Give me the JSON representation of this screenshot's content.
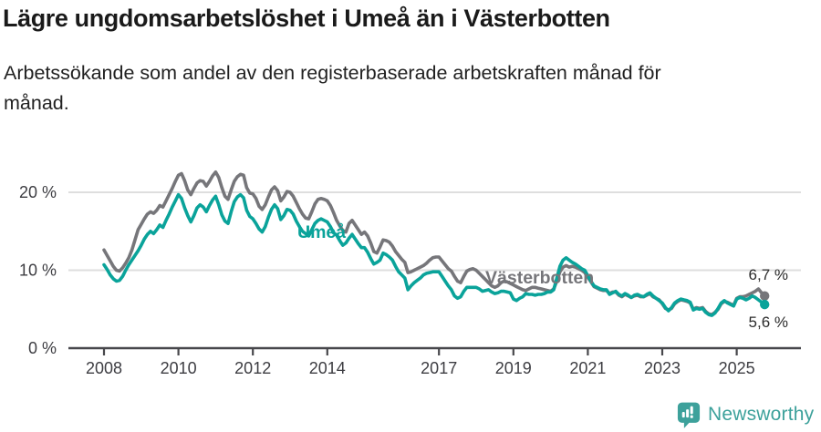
{
  "header": {
    "title": "Lägre ungdomsarbetslöshet i Umeå än i Västerbotten",
    "subtitle_lines": [
      "Arbetssökande som andel av den registerbaserade arbetskraften månad för",
      "månad."
    ]
  },
  "colors": {
    "teal": "#0aa39a",
    "gray": "#76767a",
    "grid": "#dedede",
    "axis": "#47474b",
    "tick_text": "#3d3d42",
    "annotation": "#2b2b2b",
    "title": "#1a1a1a",
    "logo_teal": "#3da19b"
  },
  "chart_data": {
    "type": "line",
    "unit": "%",
    "frequency": "monthly",
    "x_start": "2008-01",
    "x_end": "2025-10",
    "grid": "horizontal",
    "ylim": [
      0,
      24
    ],
    "x_tick_years": [
      2008,
      2010,
      2012,
      2014,
      2017,
      2019,
      2021,
      2023,
      2025
    ],
    "y_ticks": [
      {
        "value": 0,
        "label": "0 %"
      },
      {
        "value": 10,
        "label": "10 %"
      },
      {
        "value": 20,
        "label": "20 %"
      }
    ],
    "series": [
      {
        "id": "vasterbotten",
        "name": "Västerbotten",
        "color": "#76767a",
        "end_label": "6,7 %",
        "values": [
          12.6,
          11.9,
          11.2,
          10.5,
          10.0,
          9.9,
          10.3,
          10.9,
          11.6,
          12.6,
          13.9,
          15.2,
          15.9,
          16.6,
          17.2,
          17.5,
          17.3,
          17.7,
          18.3,
          18.1,
          18.9,
          19.7,
          20.5,
          21.4,
          22.2,
          22.4,
          21.5,
          20.3,
          19.7,
          20.5,
          21.2,
          21.5,
          21.4,
          20.8,
          21.4,
          22.1,
          22.6,
          21.9,
          20.6,
          19.5,
          19.1,
          20.3,
          21.4,
          22.0,
          22.3,
          22.2,
          20.6,
          19.9,
          19.8,
          19.2,
          18.2,
          17.8,
          18.4,
          19.4,
          20.3,
          20.7,
          20.2,
          18.9,
          19.4,
          20.1,
          20.0,
          19.5,
          18.7,
          17.9,
          17.2,
          16.7,
          16.6,
          17.5,
          18.5,
          19.1,
          19.2,
          19.1,
          18.9,
          18.3,
          17.4,
          16.4,
          15.7,
          15.1,
          14.9,
          16.0,
          16.4,
          15.8,
          15.2,
          14.6,
          14.9,
          14.4,
          13.5,
          12.4,
          12.2,
          13.0,
          13.9,
          13.8,
          13.6,
          13.1,
          12.4,
          11.9,
          11.4,
          11.0,
          9.7,
          9.8,
          10.0,
          10.2,
          10.4,
          10.6,
          10.9,
          11.3,
          11.6,
          11.7,
          11.7,
          11.2,
          10.7,
          10.2,
          9.9,
          9.2,
          8.6,
          8.4,
          9.2,
          9.9,
          10.1,
          10.2,
          10.0,
          9.6,
          9.2,
          8.8,
          8.4,
          8.0,
          7.8,
          8.0,
          8.4,
          8.6,
          8.5,
          8.3,
          8.1,
          7.9,
          7.7,
          7.5,
          7.4,
          7.6,
          7.8,
          7.8,
          7.7,
          7.6,
          7.5,
          7.4,
          7.3,
          7.6,
          8.6,
          9.8,
          10.4,
          10.6,
          10.4,
          10.5,
          10.4,
          10.2,
          10.0,
          9.7,
          9.1,
          8.5,
          7.9,
          7.7,
          7.5,
          7.4,
          7.4,
          7.0,
          7.2,
          7.2,
          6.8,
          6.6,
          6.9,
          6.7,
          6.5,
          6.7,
          6.8,
          6.6,
          6.6,
          6.8,
          7.0,
          6.6,
          6.4,
          6.2,
          5.7,
          5.1,
          4.9,
          5.1,
          5.7,
          6.0,
          6.2,
          6.1,
          6.0,
          5.8,
          5.0,
          5.2,
          5.1,
          5.2,
          4.7,
          4.4,
          4.3,
          4.6,
          5.0,
          5.7,
          6.0,
          5.9,
          5.7,
          5.5,
          6.4,
          6.6,
          6.6,
          6.7,
          6.9,
          7.1,
          7.3,
          7.6,
          7.1,
          6.7
        ]
      },
      {
        "id": "umea",
        "name": "Umeå",
        "color": "#0aa39a",
        "end_label": "5,6 %",
        "values": [
          10.7,
          10.1,
          9.4,
          8.9,
          8.6,
          8.7,
          9.2,
          10.0,
          10.7,
          11.3,
          11.9,
          12.5,
          13.2,
          14.0,
          14.6,
          15.0,
          14.7,
          15.2,
          15.8,
          15.5,
          16.4,
          17.2,
          18.1,
          18.9,
          19.7,
          19.2,
          18.0,
          17.0,
          16.2,
          17.0,
          18.0,
          18.4,
          18.1,
          17.5,
          18.3,
          19.0,
          19.5,
          18.4,
          17.1,
          16.3,
          16.0,
          17.5,
          18.8,
          19.4,
          19.7,
          19.3,
          17.7,
          16.9,
          16.6,
          16.0,
          15.3,
          14.9,
          15.6,
          16.8,
          17.8,
          18.4,
          17.9,
          16.5,
          17.0,
          17.8,
          17.7,
          17.2,
          16.3,
          15.6,
          15.0,
          14.7,
          14.4,
          15.2,
          16.0,
          16.4,
          16.6,
          16.4,
          16.2,
          15.6,
          14.8,
          14.5,
          13.8,
          13.2,
          13.5,
          14.1,
          14.6,
          14.0,
          13.4,
          12.9,
          12.9,
          12.3,
          11.5,
          10.8,
          11.0,
          11.3,
          12.2,
          12.0,
          11.7,
          11.3,
          10.5,
          9.8,
          9.4,
          9.0,
          7.5,
          8.0,
          8.4,
          8.7,
          9.0,
          9.4,
          9.6,
          9.7,
          9.8,
          9.8,
          9.8,
          9.2,
          8.6,
          8.0,
          7.5,
          6.7,
          6.4,
          6.6,
          7.3,
          7.8,
          7.8,
          7.8,
          7.8,
          7.6,
          7.3,
          7.4,
          7.5,
          7.2,
          7.0,
          7.1,
          7.3,
          7.3,
          7.2,
          7.1,
          6.3,
          6.1,
          6.4,
          6.6,
          7.0,
          6.9,
          6.9,
          6.8,
          6.9,
          6.9,
          7.0,
          7.2,
          7.2,
          7.5,
          9.0,
          10.5,
          11.3,
          11.6,
          11.3,
          11.0,
          10.8,
          10.5,
          10.2,
          10.0,
          9.3,
          8.6,
          8.0,
          7.8,
          7.6,
          7.5,
          7.5,
          6.9,
          7.1,
          7.3,
          6.9,
          6.7,
          7.0,
          6.8,
          6.5,
          6.8,
          6.9,
          6.7,
          6.6,
          6.9,
          7.1,
          6.7,
          6.4,
          6.1,
          5.8,
          5.2,
          4.8,
          5.2,
          5.8,
          6.1,
          6.3,
          6.2,
          6.1,
          5.9,
          4.9,
          5.1,
          5.0,
          5.1,
          4.6,
          4.3,
          4.2,
          4.5,
          5.1,
          5.8,
          6.1,
          5.8,
          5.6,
          5.4,
          6.3,
          6.5,
          6.4,
          6.2,
          6.4,
          6.7,
          6.5,
          6.2,
          5.9,
          5.6
        ]
      }
    ]
  },
  "logo": {
    "text": "Newsworthy"
  }
}
